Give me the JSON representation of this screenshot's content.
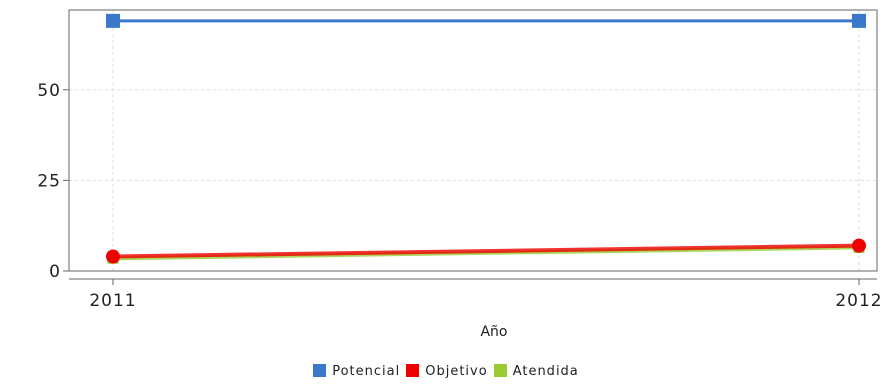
{
  "chart_data": {
    "type": "line",
    "title": "",
    "xlabel": "Año",
    "ylabel": "",
    "categories": [
      "2011",
      "2012"
    ],
    "y_ticks": [
      0,
      25,
      50
    ],
    "ylim": [
      0,
      72
    ],
    "grid": true,
    "legend_position": "bottom",
    "series": [
      {
        "name": "Potencial",
        "color": "#3a78cc",
        "marker": "square",
        "values": [
          69,
          69
        ]
      },
      {
        "name": "Objetivo",
        "color": "#ee0000",
        "marker": "circle",
        "values": [
          4,
          7
        ]
      },
      {
        "name": "Atendida",
        "color": "#99cc33",
        "marker": "square",
        "values": [
          3.5,
          6.5
        ]
      }
    ]
  }
}
